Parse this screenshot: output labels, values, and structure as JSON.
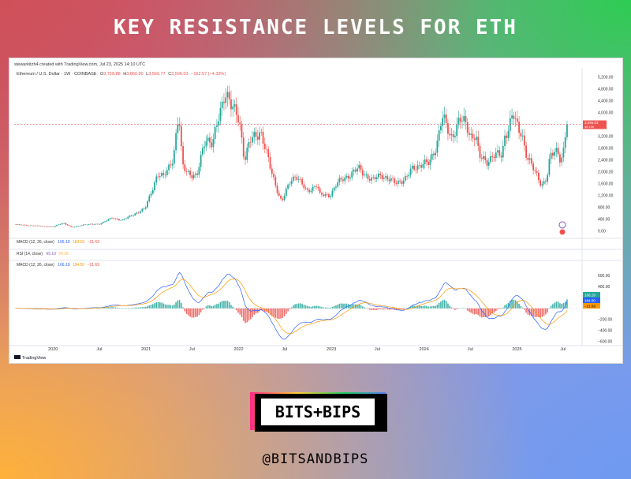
{
  "page": {
    "title": "KEY RESISTANCE LEVELS FOR ETH",
    "handle": "@BITSANDBIPS",
    "logo_text": "BITS+BIPS"
  },
  "chart_data": {
    "type": "candlestick",
    "attribution": "stewarkitzh4 created with TradingView.com, Jul 23, 2025 14:10 UTC",
    "symbol": "Ethereum / U.S. Dollar · 1W · COINBASE",
    "ohlc": {
      "o_label": "O",
      "o": "3,758.88",
      "h_label": "H",
      "h": "3,860.90",
      "l_label": "L",
      "l": "3,560.77",
      "c_label": "C",
      "c": "3,596.03",
      "change": "−162.57 (−4.33%)"
    },
    "last_price": "3,596.03",
    "countdown": "4d 10h",
    "price_axis_ticks": [
      "5,200.00",
      "4,800.00",
      "4,400.00",
      "4,000.00",
      "3,200.00",
      "2,800.00",
      "2,400.00",
      "2,000.00",
      "1,600.00",
      "1,200.00",
      "800.00",
      "400.00",
      "0.00"
    ],
    "price_axis_values": [
      5200,
      4800,
      4400,
      4000,
      3200,
      2800,
      2400,
      2000,
      1600,
      1200,
      800,
      400,
      0
    ],
    "price_range": [
      -200,
      5450
    ],
    "x_range": [
      "2019-08-01",
      "2025-09-08"
    ],
    "time_labels": [
      {
        "label": "2020",
        "date": "2020-01-01"
      },
      {
        "label": "Jul",
        "date": "2020-07-01"
      },
      {
        "label": "2021",
        "date": "2021-01-01"
      },
      {
        "label": "Jul",
        "date": "2021-07-01"
      },
      {
        "label": "2022",
        "date": "2022-01-01"
      },
      {
        "label": "Jul",
        "date": "2022-07-01"
      },
      {
        "label": "2023",
        "date": "2023-01-01"
      },
      {
        "label": "Jul",
        "date": "2023-07-01"
      },
      {
        "label": "2024",
        "date": "2024-01-01"
      },
      {
        "label": "Jul",
        "date": "2024-07-01"
      },
      {
        "label": "2025",
        "date": "2025-01-01"
      },
      {
        "label": "Jul",
        "date": "2025-07-01"
      }
    ],
    "price_path": [
      [
        "2019-08-01",
        215
      ],
      [
        "2019-10-01",
        180
      ],
      [
        "2020-01-01",
        135
      ],
      [
        "2020-02-10",
        270
      ],
      [
        "2020-03-16",
        110
      ],
      [
        "2020-05-01",
        210
      ],
      [
        "2020-07-01",
        230
      ],
      [
        "2020-08-20",
        430
      ],
      [
        "2020-10-01",
        360
      ],
      [
        "2020-11-23",
        600
      ],
      [
        "2020-12-28",
        740
      ],
      [
        "2021-02-15",
        1900
      ],
      [
        "2021-03-10",
        1800
      ],
      [
        "2021-04-19",
        2500
      ],
      [
        "2021-05-10",
        3900
      ],
      [
        "2021-05-24",
        2200
      ],
      [
        "2021-06-28",
        1900
      ],
      [
        "2021-07-20",
        1800
      ],
      [
        "2021-08-23",
        3200
      ],
      [
        "2021-09-20",
        2900
      ],
      [
        "2021-10-25",
        4200
      ],
      [
        "2021-11-08",
        4800
      ],
      [
        "2021-12-06",
        4100
      ],
      [
        "2022-01-03",
        3800
      ],
      [
        "2022-01-24",
        2400
      ],
      [
        "2022-02-14",
        3000
      ],
      [
        "2022-03-28",
        3400
      ],
      [
        "2022-05-09",
        2000
      ],
      [
        "2022-06-13",
        1100
      ],
      [
        "2022-06-20",
        1000
      ],
      [
        "2022-07-25",
        1700
      ],
      [
        "2022-08-15",
        1900
      ],
      [
        "2022-09-26",
        1300
      ],
      [
        "2022-11-07",
        1600
      ],
      [
        "2022-11-14",
        1200
      ],
      [
        "2022-12-26",
        1200
      ],
      [
        "2023-01-23",
        1600
      ],
      [
        "2023-04-17",
        2100
      ],
      [
        "2023-06-12",
        1700
      ],
      [
        "2023-07-17",
        1900
      ],
      [
        "2023-09-11",
        1600
      ],
      [
        "2023-10-23",
        1800
      ],
      [
        "2023-11-13",
        2050
      ],
      [
        "2023-12-25",
        2300
      ],
      [
        "2024-01-22",
        2250
      ],
      [
        "2024-02-19",
        2900
      ],
      [
        "2024-03-11",
        3900
      ],
      [
        "2024-04-15",
        3100
      ],
      [
        "2024-05-20",
        3800
      ],
      [
        "2024-06-17",
        3500
      ],
      [
        "2024-07-01",
        3200
      ],
      [
        "2024-07-22",
        3300
      ],
      [
        "2024-08-05",
        2500
      ],
      [
        "2024-09-02",
        2300
      ],
      [
        "2024-09-30",
        2600
      ],
      [
        "2024-11-04",
        2500
      ],
      [
        "2024-11-11",
        3100
      ],
      [
        "2024-12-16",
        4000
      ],
      [
        "2025-01-06",
        3300
      ],
      [
        "2025-01-20",
        3300
      ],
      [
        "2025-02-03",
        2700
      ],
      [
        "2025-03-10",
        2000
      ],
      [
        "2025-04-07",
        1550
      ],
      [
        "2025-04-28",
        1800
      ],
      [
        "2025-05-12",
        2500
      ],
      [
        "2025-06-09",
        2700
      ],
      [
        "2025-06-23",
        2400
      ],
      [
        "2025-07-07",
        2900
      ],
      [
        "2025-07-14",
        3750
      ],
      [
        "2025-07-21",
        3596
      ]
    ],
    "indicators": [
      {
        "name": "MACD (12, 26, close)",
        "values": [
          "166.19",
          "184.50",
          "−21.69"
        ]
      },
      {
        "name": "RSI (14, close)",
        "values": [
          "65.10",
          "54.28"
        ]
      },
      {
        "name": "MACD (12, 26, close)",
        "values": [
          "166.19",
          "184.50",
          "−21.69"
        ]
      }
    ],
    "macd_axis_ticks": [
      "600.00",
      "400.00",
      "−200.00",
      "−400.00",
      "−600.00"
    ],
    "macd_axis_values": [
      600,
      400,
      -200,
      -400,
      -600
    ],
    "macd_range": [
      -650,
      700
    ],
    "macd_badges": [
      "166.19",
      "184.50",
      "−21.69"
    ],
    "colors": {
      "up": "#26a69a",
      "down": "#ef5350",
      "macd": "#2962ff",
      "signal": "#ff9800",
      "hist_up": "#26a69a",
      "hist_down": "#ef5350",
      "last_price": "#ef5350"
    },
    "footer": "TradingView"
  }
}
